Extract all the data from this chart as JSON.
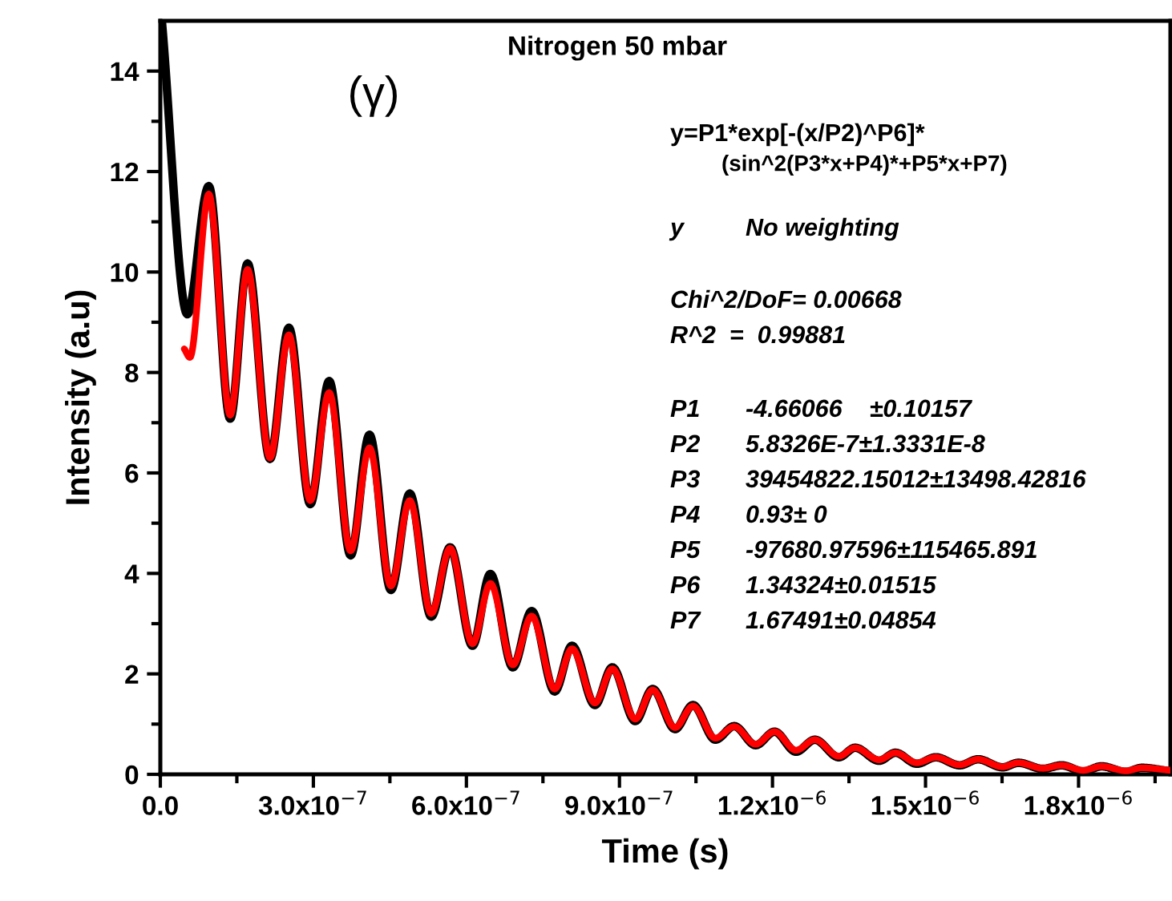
{
  "chart_data": {
    "type": "line",
    "title": "Nitrogen 50 mbar",
    "xlabel": "Time (s)",
    "ylabel": "Intensity (a.u)",
    "xlim": [
      0,
      1.98e-06
    ],
    "ylim": [
      0,
      15
    ],
    "xticks": [
      {
        "value": 0,
        "label": "0.0"
      },
      {
        "value": 1.5e-07,
        "label": null
      },
      {
        "value": 3e-07,
        "label": "3.0x10$^{−7}$"
      },
      {
        "value": 4.5e-07,
        "label": null
      },
      {
        "value": 6e-07,
        "label": "6.0x10$^{−7}$"
      },
      {
        "value": 7.5e-07,
        "label": null
      },
      {
        "value": 9e-07,
        "label": "9.0x10$^{−7}$"
      },
      {
        "value": 1.05e-06,
        "label": null
      },
      {
        "value": 1.2e-06,
        "label": "1.2x10$^{−6}$"
      },
      {
        "value": 1.35e-06,
        "label": null
      },
      {
        "value": 1.5e-06,
        "label": "1.5x10$^{−6}$"
      },
      {
        "value": 1.65e-06,
        "label": null
      },
      {
        "value": 1.8e-06,
        "label": "1.8x10$^{−6}$"
      },
      {
        "value": 1.95e-06,
        "label": null
      }
    ],
    "yticks": [
      0,
      {
        "value": 1,
        "label": null
      },
      2,
      {
        "value": 3,
        "label": null
      },
      4,
      {
        "value": 5,
        "label": null
      },
      6,
      {
        "value": 7,
        "label": null
      },
      8,
      {
        "value": 9,
        "label": null
      },
      10,
      {
        "value": 11,
        "label": null
      },
      12,
      {
        "value": 13,
        "label": null
      },
      14
    ],
    "grid": false,
    "marker": "none",
    "line_style": "solid",
    "series": [
      {
        "color": "#000000",
        "x": [
          3e-09,
          5.3e-08,
          9.5e-08,
          1.37e-07,
          1.71e-07,
          2.15e-07,
          2.52e-07,
          2.94e-07,
          3.31e-07,
          3.73e-07,
          4.1e-07,
          4.52e-07,
          4.89e-07,
          5.31e-07,
          5.68e-07,
          6.12e-07,
          6.47e-07,
          6.91e-07,
          7.28e-07,
          7.73e-07,
          8.07e-07,
          8.52e-07,
          8.86e-07,
          9.31e-07,
          9.65e-07,
          1.009e-06,
          1.044e-06,
          1.088e-06,
          1.125e-06,
          1.167e-06,
          1.204e-06,
          1.246e-06,
          1.283e-06,
          1.33e-06,
          1.362e-06,
          1.409e-06,
          1.441e-06,
          1.483e-06,
          1.52e-06,
          1.567e-06,
          1.603e-06,
          1.651e-06,
          1.682e-06,
          1.73e-06,
          1.767e-06,
          1.809e-06,
          1.845e-06,
          1.893e-06,
          1.924e-06,
          1.98e-06
        ],
        "values": [
          15.0,
          9.16,
          11.71,
          7.08,
          10.17,
          6.28,
          8.89,
          5.38,
          7.83,
          4.36,
          6.76,
          3.67,
          5.59,
          3.14,
          4.52,
          2.56,
          3.99,
          2.13,
          3.25,
          1.65,
          2.56,
          1.38,
          2.13,
          1.06,
          1.7,
          0.9,
          1.38,
          0.69,
          0.96,
          0.58,
          0.85,
          0.45,
          0.69,
          0.34,
          0.53,
          0.27,
          0.43,
          0.21,
          0.34,
          0.18,
          0.3,
          0.14,
          0.23,
          0.11,
          0.18,
          0.06,
          0.16,
          0.05,
          0.13,
          0.06
        ]
      },
      {
        "color": "#ff0000",
        "x": [
          4.7e-08,
          5.8e-08,
          9.5e-08,
          1.37e-07,
          1.71e-07,
          2.15e-07,
          2.52e-07,
          2.94e-07,
          3.31e-07,
          3.73e-07,
          4.1e-07,
          4.52e-07,
          4.89e-07,
          5.31e-07,
          5.68e-07,
          6.12e-07,
          6.47e-07,
          6.91e-07,
          7.28e-07,
          7.73e-07,
          8.07e-07,
          8.52e-07,
          8.86e-07,
          9.31e-07,
          9.65e-07,
          1.009e-06,
          1.044e-06,
          1.088e-06,
          1.125e-06,
          1.167e-06,
          1.204e-06,
          1.246e-06,
          1.283e-06,
          1.33e-06,
          1.362e-06,
          1.409e-06,
          1.441e-06,
          1.483e-06,
          1.52e-06,
          1.567e-06,
          1.603e-06,
          1.651e-06,
          1.682e-06,
          1.73e-06,
          1.767e-06,
          1.809e-06,
          1.845e-06,
          1.893e-06,
          1.924e-06,
          1.98e-06
        ],
        "values": [
          8.47,
          8.3,
          11.55,
          7.15,
          10.05,
          6.3,
          8.75,
          5.45,
          7.6,
          4.45,
          6.5,
          3.75,
          5.45,
          3.2,
          4.5,
          2.6,
          3.8,
          2.18,
          3.15,
          1.7,
          2.5,
          1.42,
          2.1,
          1.1,
          1.68,
          0.93,
          1.36,
          0.72,
          0.95,
          0.6,
          0.85,
          0.48,
          0.69,
          0.36,
          0.53,
          0.29,
          0.43,
          0.23,
          0.34,
          0.19,
          0.3,
          0.15,
          0.23,
          0.12,
          0.18,
          0.08,
          0.16,
          0.07,
          0.13,
          0.08
        ]
      }
    ],
    "annotations": [
      "(γ)",
      "y=P1*exp[-(x/P2)^P6]*",
      "(sin^2(P3*x+P4)*+P5*x+P7)",
      "y",
      "No weighting",
      "Chi^2/DoF= 0.00668",
      "R^2  =  0.99881",
      "P1",
      "-4.66066    ±0.10157",
      "P2",
      "5.8326E-7±1.3331E-8",
      "P3",
      "39454822.15012±13498.42816",
      "P4",
      "0.93± 0",
      "P5",
      "-97680.97596±115465.891",
      "P6",
      "1.34324±0.01515",
      "P7",
      "1.67491±0.04854"
    ]
  }
}
